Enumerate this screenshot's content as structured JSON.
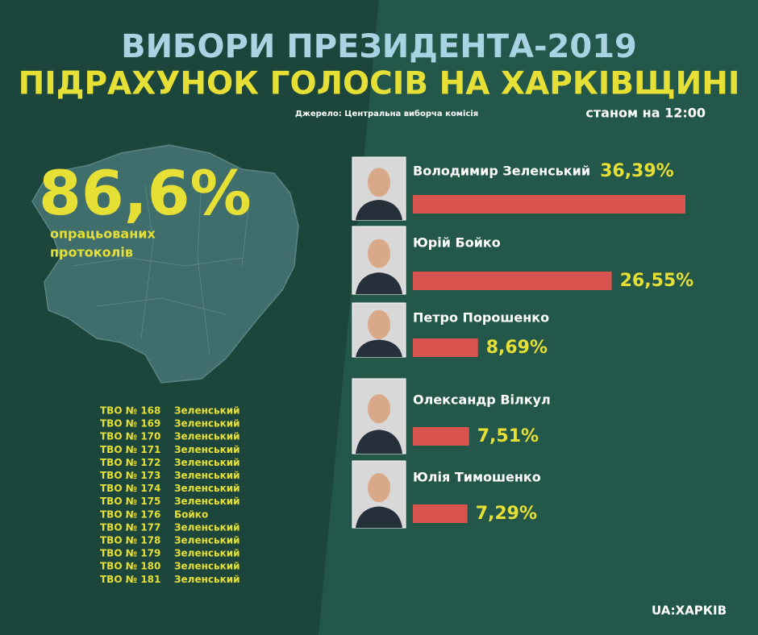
{
  "header": {
    "title": "ВИБОРИ ПРЕЗИДЕНТА-2019",
    "subtitle": "ПІДРАХУНОК ГОЛОСІВ НА ХАРКІВЩИНІ",
    "source": "Джерело: Центральна виборча комісія",
    "as_of": "станом на 12:00"
  },
  "summary": {
    "value": "86,6%",
    "caption": [
      "опрацьованих",
      "протоколів"
    ]
  },
  "chart_data": {
    "type": "bar",
    "categories": [
      "Володимир Зеленський",
      "Юрій Бойко",
      "Петро Порошенко",
      "Олександр Вілкул",
      "Юлія Тимошенко"
    ],
    "values": [
      36.39,
      26.55,
      8.69,
      7.51,
      7.29
    ],
    "value_labels": [
      "36,39%",
      "26,55%",
      "8,69%",
      "7,51%",
      "7,29%"
    ],
    "color": "#d9534f"
  },
  "table": {
    "rows": [
      [
        "ТВО № 168",
        "Зеленський"
      ],
      [
        "ТВО № 169",
        "Зеленський"
      ],
      [
        "ТВО № 170",
        "Зеленський"
      ],
      [
        "ТВО № 171",
        "Зеленський"
      ],
      [
        "ТВО № 172",
        "Зеленський"
      ],
      [
        "ТВО № 173",
        "Зеленський"
      ],
      [
        "ТВО № 174",
        "Зеленський"
      ],
      [
        "ТВО № 175",
        "Зеленський"
      ],
      [
        "ТВО № 176",
        "Бойко"
      ],
      [
        "ТВО № 177",
        "Зеленський"
      ],
      [
        "ТВО № 178",
        "Зеленський"
      ],
      [
        "ТВО № 179",
        "Зеленський"
      ],
      [
        "ТВО № 180",
        "Зеленський"
      ],
      [
        "ТВО № 181",
        "Зеленський"
      ]
    ]
  },
  "logo": "UA:ХАРКІВ"
}
